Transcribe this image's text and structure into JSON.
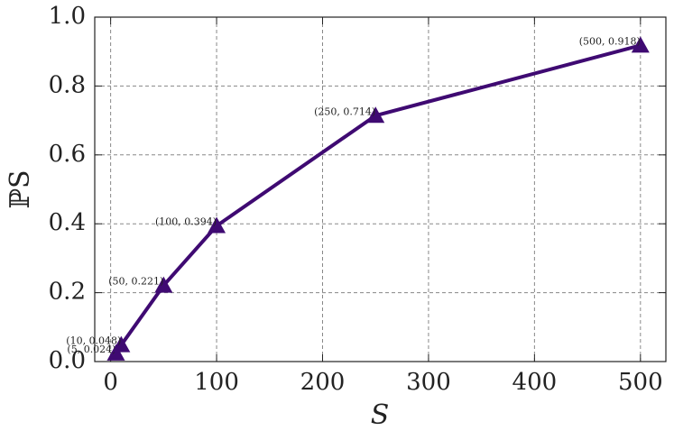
{
  "chart_data": {
    "type": "line",
    "xlabel": "S",
    "ylabel": "ℙS",
    "x": [
      5,
      10,
      50,
      100,
      250,
      500
    ],
    "series": [
      {
        "color": "#3f0a72",
        "values": [
          0.024,
          0.048,
          0.221,
          0.394,
          0.714,
          0.918
        ],
        "value_labels": [
          "(5, 0.024)",
          "(10, 0.048)",
          "(50, 0.221)",
          "(100, 0.394)",
          "(250, 0.714)",
          "(500, 0.918)"
        ]
      }
    ],
    "xlim": [
      -15,
      524
    ],
    "ylim": [
      0,
      1.0
    ],
    "xticks": [
      0,
      100,
      200,
      300,
      400,
      500
    ],
    "yticks": [
      {
        "value": 0,
        "label": "0.0"
      },
      0.2,
      0.4,
      0.6,
      0.8,
      {
        "value": 1.0,
        "label": "1.0"
      }
    ],
    "grid": true,
    "marker": "triangle"
  }
}
